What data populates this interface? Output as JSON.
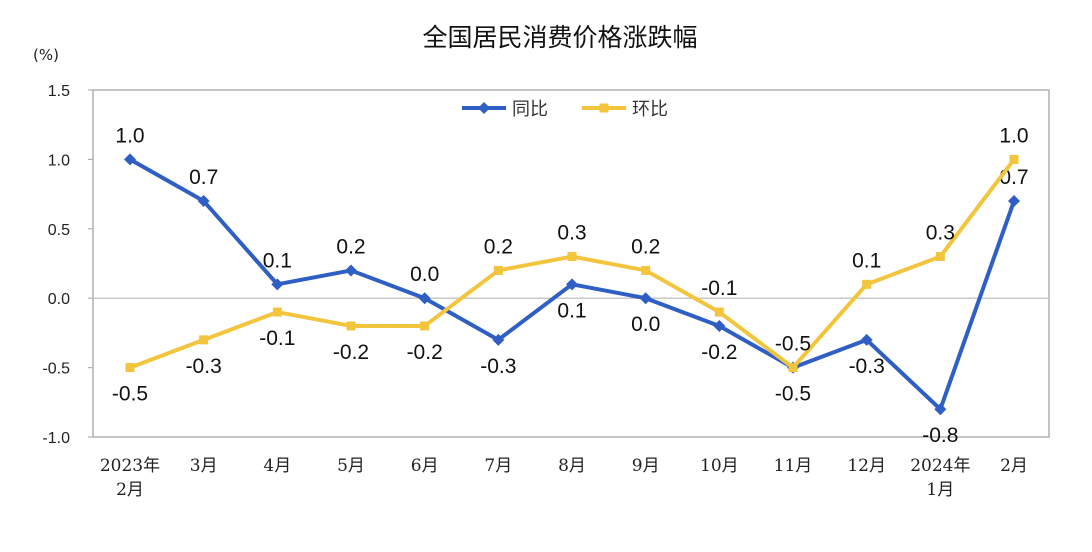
{
  "chart_data": {
    "type": "line",
    "title": "全国居民消费价格涨跌幅",
    "unit_label": "(%)",
    "categories": [
      [
        "2023年",
        "2月"
      ],
      [
        "3月"
      ],
      [
        "4月"
      ],
      [
        "5月"
      ],
      [
        "6月"
      ],
      [
        "7月"
      ],
      [
        "8月"
      ],
      [
        "9月"
      ],
      [
        "10月"
      ],
      [
        "11月"
      ],
      [
        "12月"
      ],
      [
        "2024年",
        "1月"
      ],
      [
        "2月"
      ]
    ],
    "ylim": [
      -1.0,
      1.5
    ],
    "yticks": [
      "1.5",
      "1.0",
      "0.5",
      "0.0",
      "-0.5",
      "-1.0"
    ],
    "ytick_values": [
      1.5,
      1.0,
      0.5,
      0.0,
      -0.5,
      -1.0
    ],
    "legend_position": "top-center",
    "series": [
      {
        "name": "同比",
        "color": "#2f5fc4",
        "marker": "diamond",
        "values": [
          1.0,
          0.7,
          0.1,
          0.2,
          0.0,
          -0.3,
          0.1,
          0.0,
          -0.2,
          -0.5,
          -0.3,
          -0.8,
          0.7
        ],
        "labels": [
          "1.0",
          "0.7",
          "0.1",
          "0.2",
          "0.0",
          "-0.3",
          "0.1",
          "0.0",
          "-0.2",
          "-0.5",
          "-0.3",
          "-0.8",
          "0.7"
        ],
        "label_side": [
          "above",
          "above",
          "above",
          "above",
          "above",
          "below",
          "below",
          "below",
          "below",
          "below",
          "below",
          "below",
          "above"
        ]
      },
      {
        "name": "环比",
        "color": "#f2c53d",
        "marker": "square",
        "values": [
          -0.5,
          -0.3,
          -0.1,
          -0.2,
          -0.2,
          0.2,
          0.3,
          0.2,
          -0.1,
          -0.5,
          0.1,
          0.3,
          1.0
        ],
        "labels": [
          "-0.5",
          "-0.3",
          "-0.1",
          "-0.2",
          "-0.2",
          "0.2",
          "0.3",
          "0.2",
          "-0.1",
          "-0.5",
          "0.1",
          "0.3",
          "1.0"
        ],
        "label_side": [
          "below",
          "below",
          "below",
          "below",
          "below",
          "above",
          "above",
          "above",
          "above",
          "above",
          "above",
          "above",
          "above"
        ]
      }
    ]
  }
}
